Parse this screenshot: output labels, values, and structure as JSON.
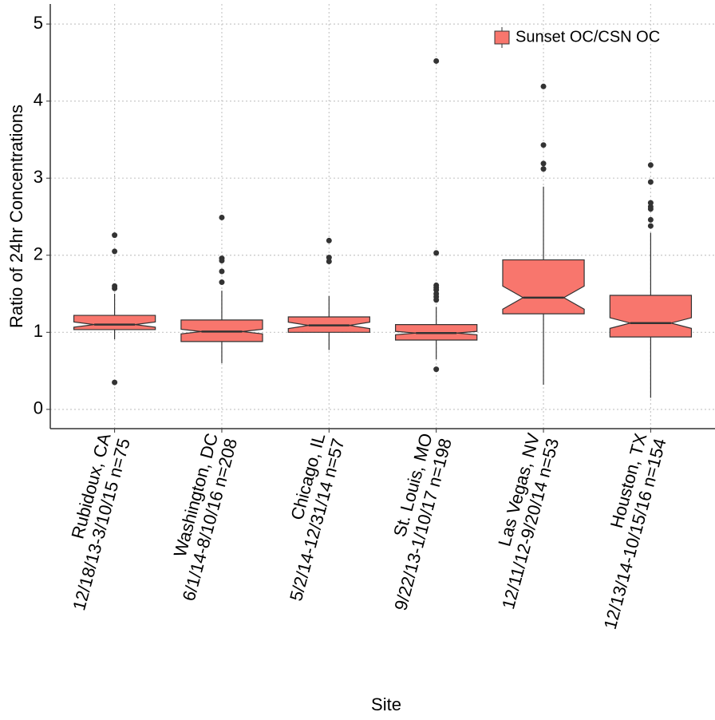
{
  "chart_data": {
    "type": "box",
    "x_label": "Site",
    "y_label": "Ratio of 24hr Concentrations",
    "categories": [
      [
        "Rubidoux, CA",
        "12/18/13-3/10/15 n=75"
      ],
      [
        "Washington, DC",
        "6/1/14-8/10/16 n=208"
      ],
      [
        "Chicago, IL",
        "5/2/14-12/31/14 n=57"
      ],
      [
        "St. Louis, MO",
        "9/22/13-1/10/17 n=198"
      ],
      [
        "Las Vegas, NV",
        "12/11/12-9/20/14 n=53"
      ],
      [
        "Houston, TX",
        "12/13/14-10/15/16 n=154"
      ]
    ],
    "series": [
      {
        "name": "Sunset OC/CSN OC",
        "color": "#F8766D",
        "boxes": [
          {
            "min": 0.91,
            "q1": 1.035,
            "median": 1.1,
            "q3": 1.22,
            "max": 1.5,
            "notch_lo": 1.066,
            "notch_hi": 1.134,
            "outliers": [
              2.26,
              2.05,
              1.6,
              1.57,
              0.35
            ]
          },
          {
            "min": 0.6,
            "q1": 0.88,
            "median": 1.01,
            "q3": 1.16,
            "max": 1.54,
            "notch_lo": 0.98,
            "notch_hi": 1.04,
            "outliers": [
              2.49,
              1.96,
              1.93,
              1.79,
              1.65
            ]
          },
          {
            "min": 0.77,
            "q1": 1.0,
            "median": 1.09,
            "q3": 1.2,
            "max": 1.47,
            "notch_lo": 1.048,
            "notch_hi": 1.132,
            "outliers": [
              2.19,
              1.97,
              1.92
            ]
          },
          {
            "min": 0.65,
            "q1": 0.9,
            "median": 0.99,
            "q3": 1.1,
            "max": 1.33,
            "notch_lo": 0.968,
            "notch_hi": 1.012,
            "outliers": [
              4.52,
              2.03,
              1.61,
              1.58,
              1.55,
              1.5,
              1.46,
              1.42,
              0.52
            ]
          },
          {
            "min": 0.32,
            "q1": 1.24,
            "median": 1.45,
            "q3": 1.94,
            "max": 2.89,
            "notch_lo": 1.3,
            "notch_hi": 1.6,
            "outliers": [
              4.19,
              3.43,
              3.19,
              3.12
            ]
          },
          {
            "min": 0.15,
            "q1": 0.94,
            "median": 1.12,
            "q3": 1.48,
            "max": 2.29,
            "notch_lo": 1.051,
            "notch_hi": 1.189,
            "outliers": [
              3.17,
              2.95,
              2.68,
              2.63,
              2.6,
              2.46,
              2.38
            ]
          }
        ]
      }
    ],
    "ylim": [
      -0.25,
      5.26
    ],
    "yticks": [
      0,
      1,
      2,
      3,
      4,
      5
    ],
    "grid": true,
    "legend": "top-right"
  }
}
